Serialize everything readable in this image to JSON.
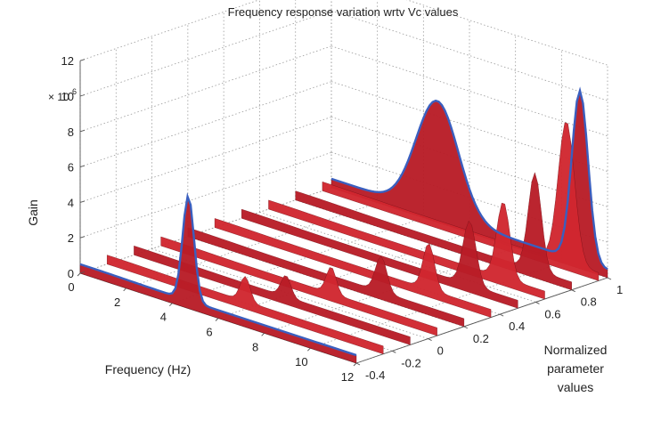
{
  "chart_data": {
    "type": "surface",
    "title": "Frequency response variation wrtv Vc values",
    "xlabel": "Frequency (Hz)",
    "ylabel_lines": [
      "Normalized",
      "parameter",
      "values"
    ],
    "zlabel": "Gain",
    "z_multiplier_label": "× 10",
    "z_multiplier_exp": "6",
    "xlim": [
      0,
      12
    ],
    "ylim": [
      -0.4,
      1
    ],
    "zlim": [
      0,
      12
    ],
    "x_ticks": [
      0,
      2,
      4,
      6,
      8,
      10,
      12
    ],
    "y_ticks": [
      -0.4,
      -0.2,
      0,
      0.2,
      0.4,
      0.6,
      0.8,
      1
    ],
    "z_ticks": [
      0,
      2,
      4,
      6,
      8,
      10,
      12
    ],
    "grid": true,
    "surface_color": "#c8202a",
    "curve_color": "#3a5fbf",
    "series": [
      {
        "p": -0.4,
        "peaks": [
          {
            "f": 4.7,
            "g": 5.9,
            "w": 0.35
          }
        ]
      },
      {
        "p": -0.25,
        "peaks": [
          {
            "f": 6.0,
            "g": 1.4,
            "w": 0.3
          }
        ]
      },
      {
        "p": -0.1,
        "peaks": [
          {
            "f": 6.6,
            "g": 1.2,
            "w": 0.3
          }
        ]
      },
      {
        "p": 0.05,
        "peaks": [
          {
            "f": 7.4,
            "g": 1.5,
            "w": 0.3
          }
        ]
      },
      {
        "p": 0.2,
        "peaks": [
          {
            "f": 8.4,
            "g": 2.0,
            "w": 0.35
          }
        ]
      },
      {
        "p": 0.35,
        "peaks": [
          {
            "f": 9.3,
            "g": 2.6,
            "w": 0.35
          }
        ]
      },
      {
        "p": 0.5,
        "peaks": [
          {
            "f": 9.9,
            "g": 3.6,
            "w": 0.4
          }
        ]
      },
      {
        "p": 0.65,
        "peaks": [
          {
            "f": 10.2,
            "g": 4.3,
            "w": 0.4
          }
        ]
      },
      {
        "p": 0.8,
        "peaks": [
          {
            "f": 10.4,
            "g": 5.5,
            "w": 0.4
          }
        ]
      },
      {
        "p": 0.95,
        "peaks": [
          {
            "f": 10.6,
            "g": 8.0,
            "w": 0.5
          }
        ]
      },
      {
        "p": 1.0,
        "peaks": [
          {
            "f": 4.6,
            "g": 6.4,
            "w": 1.3
          },
          {
            "f": 10.8,
            "g": 9.6,
            "w": 0.5
          }
        ]
      }
    ]
  }
}
